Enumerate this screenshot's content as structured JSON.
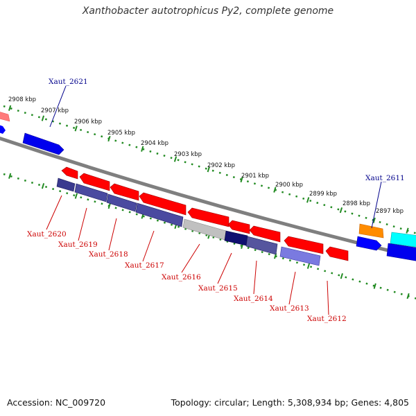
{
  "title": "Xanthobacter autotrophicus Py2, complete genome",
  "footer": {
    "accession": "Accession: NC_009720",
    "summary": "Topology: circular; Length: 5,308,934 bp; Genes: 4,805"
  },
  "ticks": [
    "2908 kbp",
    "2907 kbp",
    "2906 kbp",
    "2905 kbp",
    "2904 kbp",
    "2903 kbp",
    "2902 kbp",
    "2901 kbp",
    "2900 kbp",
    "2899 kbp",
    "2898 kbp",
    "2897 kbp"
  ],
  "gene_labels": {
    "outer": [
      "Xaut_2621",
      "Xaut_2611"
    ],
    "inner": [
      "Xaut_2620",
      "Xaut_2619",
      "Xaut_2618",
      "Xaut_2617",
      "Xaut_2616",
      "Xaut_2615",
      "Xaut_2614",
      "Xaut_2613",
      "Xaut_2612"
    ]
  },
  "colors": {
    "outer_label": "#00008b",
    "inner_label": "#cc0000",
    "forward_red": "#ff0000",
    "protein_navy": "#2a2a7a",
    "purple": "#4b4b9e",
    "blue": "#0000ff",
    "orange": "#ff8c00",
    "cyan": "#00ffff",
    "pink": "#ff6b6b",
    "grey": "#bbbbbb",
    "backbone": "#808080",
    "scale_dots": "#228b22"
  }
}
